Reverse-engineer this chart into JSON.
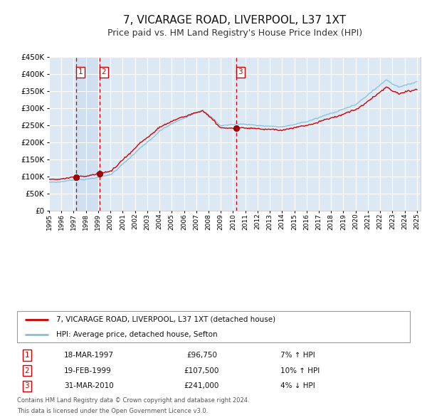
{
  "title": "7, VICARAGE ROAD, LIVERPOOL, L37 1XT",
  "subtitle": "Price paid vs. HM Land Registry's House Price Index (HPI)",
  "title_fontsize": 11,
  "subtitle_fontsize": 9,
  "background_color": "#ffffff",
  "plot_bg_color": "#dce9f5",
  "grid_color": "#ffffff",
  "hpi_line_color": "#85bde0",
  "price_line_color": "#cc0000",
  "sale_marker_color": "#aa0000",
  "vline_color": "#cc0000",
  "ylim": [
    0,
    450000
  ],
  "yticks": [
    0,
    50000,
    100000,
    150000,
    200000,
    250000,
    300000,
    350000,
    400000,
    450000
  ],
  "sales": [
    {
      "date_num": 1997.21,
      "price": 96750,
      "label": "1",
      "date_str": "18-MAR-1997",
      "hpi_change": "7% ↑ HPI"
    },
    {
      "date_num": 1999.13,
      "price": 107500,
      "label": "2",
      "date_str": "19-FEB-1999",
      "hpi_change": "10% ↑ HPI"
    },
    {
      "date_num": 2010.25,
      "price": 241000,
      "label": "3",
      "date_str": "31-MAR-2010",
      "hpi_change": "4% ↓ HPI"
    }
  ],
  "legend_line1": "7, VICARAGE ROAD, LIVERPOOL, L37 1XT (detached house)",
  "legend_line2": "HPI: Average price, detached house, Sefton",
  "footer1": "Contains HM Land Registry data © Crown copyright and database right 2024.",
  "footer2": "This data is licensed under the Open Government Licence v3.0.",
  "shade_color": "#ccddf0",
  "xstart": 1995.0,
  "xend": 2025.3
}
